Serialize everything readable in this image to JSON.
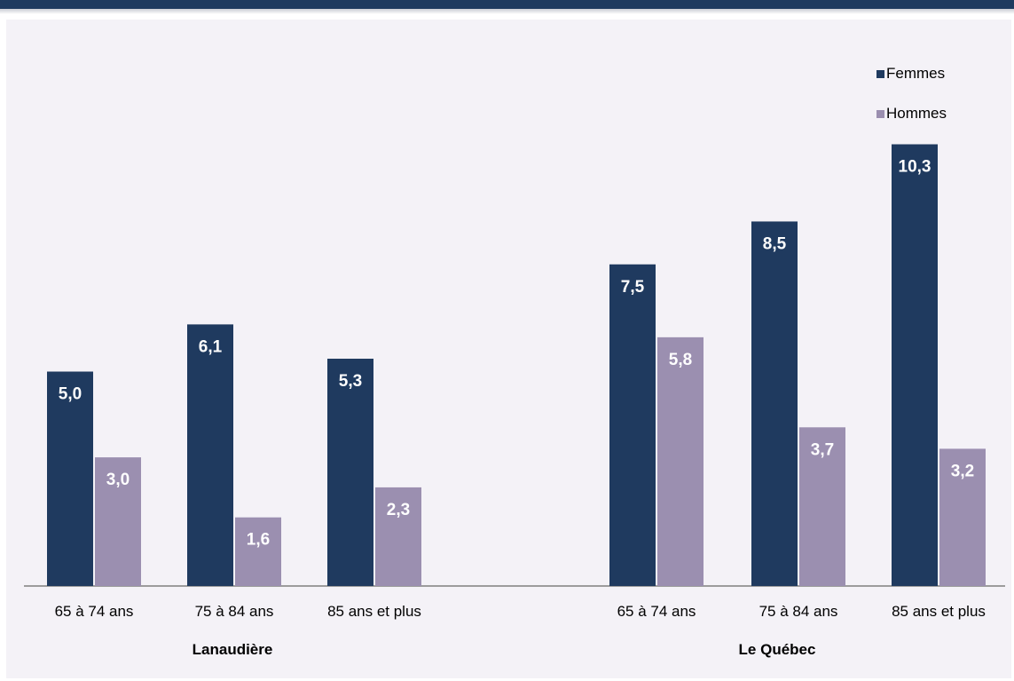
{
  "chart_data": {
    "type": "bar",
    "title": "",
    "xlabel": "",
    "ylabel": "",
    "groups": [
      {
        "name": "Lanaudière",
        "categories": [
          "65 à 74 ans",
          "75 à 84 ans",
          "85 ans et plus"
        ]
      },
      {
        "name": "Le Québec",
        "categories": [
          "65 à 74 ans",
          "75 à 84 ans",
          "85 ans et plus"
        ]
      }
    ],
    "series": [
      {
        "name": "Femmes",
        "color": "#1f3a5f",
        "values": [
          5.0,
          6.1,
          5.3,
          7.5,
          8.5,
          10.3
        ],
        "labels": [
          "5,0",
          "6,1",
          "5,3",
          "7,5",
          "8,5",
          "10,3"
        ]
      },
      {
        "name": "Hommes",
        "color": "#9b8fb0",
        "values": [
          3.0,
          1.6,
          2.3,
          5.8,
          3.7,
          3.2
        ],
        "labels": [
          "3,0",
          "1,6",
          "2,3",
          "5,8",
          "3,7",
          "3,2"
        ]
      }
    ],
    "ylim": [
      0,
      12
    ],
    "grid": false,
    "legend": "top-right"
  }
}
